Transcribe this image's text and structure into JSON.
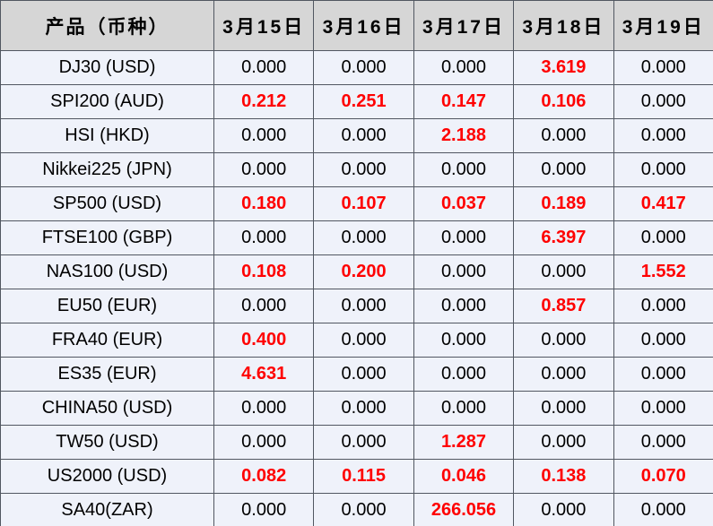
{
  "table": {
    "header": {
      "product_label": "产品（币种）",
      "dates": [
        "3月15日",
        "3月16日",
        "3月17日",
        "3月18日",
        "3月19日"
      ]
    },
    "rows": [
      {
        "product": "DJ30 (USD)",
        "values": [
          "0.000",
          "0.000",
          "0.000",
          "3.619",
          "0.000"
        ],
        "red": [
          0,
          0,
          0,
          1,
          0
        ]
      },
      {
        "product": "SPI200 (AUD)",
        "values": [
          "0.212",
          "0.251",
          "0.147",
          "0.106",
          "0.000"
        ],
        "red": [
          1,
          1,
          1,
          1,
          0
        ]
      },
      {
        "product": "HSI (HKD)",
        "values": [
          "0.000",
          "0.000",
          "2.188",
          "0.000",
          "0.000"
        ],
        "red": [
          0,
          0,
          1,
          0,
          0
        ]
      },
      {
        "product": "Nikkei225 (JPN)",
        "values": [
          "0.000",
          "0.000",
          "0.000",
          "0.000",
          "0.000"
        ],
        "red": [
          0,
          0,
          0,
          0,
          0
        ]
      },
      {
        "product": "SP500 (USD)",
        "values": [
          "0.180",
          "0.107",
          "0.037",
          "0.189",
          "0.417"
        ],
        "red": [
          1,
          1,
          1,
          1,
          1
        ]
      },
      {
        "product": "FTSE100 (GBP)",
        "values": [
          "0.000",
          "0.000",
          "0.000",
          "6.397",
          "0.000"
        ],
        "red": [
          0,
          0,
          0,
          1,
          0
        ]
      },
      {
        "product": "NAS100 (USD)",
        "values": [
          "0.108",
          "0.200",
          "0.000",
          "0.000",
          "1.552"
        ],
        "red": [
          1,
          1,
          0,
          0,
          1
        ]
      },
      {
        "product": "EU50 (EUR)",
        "values": [
          "0.000",
          "0.000",
          "0.000",
          "0.857",
          "0.000"
        ],
        "red": [
          0,
          0,
          0,
          1,
          0
        ]
      },
      {
        "product": "FRA40 (EUR)",
        "values": [
          "0.400",
          "0.000",
          "0.000",
          "0.000",
          "0.000"
        ],
        "red": [
          1,
          0,
          0,
          0,
          0
        ]
      },
      {
        "product": "ES35 (EUR)",
        "values": [
          "4.631",
          "0.000",
          "0.000",
          "0.000",
          "0.000"
        ],
        "red": [
          1,
          0,
          0,
          0,
          0
        ]
      },
      {
        "product": "CHINA50 (USD)",
        "values": [
          "0.000",
          "0.000",
          "0.000",
          "0.000",
          "0.000"
        ],
        "red": [
          0,
          0,
          0,
          0,
          0
        ]
      },
      {
        "product": "TW50 (USD)",
        "values": [
          "0.000",
          "0.000",
          "1.287",
          "0.000",
          "0.000"
        ],
        "red": [
          0,
          0,
          1,
          0,
          0
        ]
      },
      {
        "product": "US2000 (USD)",
        "values": [
          "0.082",
          "0.115",
          "0.046",
          "0.138",
          "0.070"
        ],
        "red": [
          1,
          1,
          1,
          1,
          1
        ]
      },
      {
        "product": "SA40(ZAR)",
        "values": [
          "0.000",
          "0.000",
          "266.056",
          "0.000",
          "0.000"
        ],
        "red": [
          0,
          0,
          1,
          0,
          0
        ]
      }
    ],
    "colors": {
      "header_bg": "#d6d6d6",
      "row_bg": "#eff2fa",
      "border": "#515761",
      "highlight_red": "#ff0000",
      "text": "#000000"
    }
  },
  "chart_data": {
    "type": "table",
    "title": "",
    "columns": [
      "产品（币种）",
      "3月15日",
      "3月16日",
      "3月17日",
      "3月18日",
      "3月19日"
    ],
    "rows": [
      [
        "DJ30 (USD)",
        0.0,
        0.0,
        0.0,
        3.619,
        0.0
      ],
      [
        "SPI200 (AUD)",
        0.212,
        0.251,
        0.147,
        0.106,
        0.0
      ],
      [
        "HSI (HKD)",
        0.0,
        0.0,
        2.188,
        0.0,
        0.0
      ],
      [
        "Nikkei225 (JPN)",
        0.0,
        0.0,
        0.0,
        0.0,
        0.0
      ],
      [
        "SP500 (USD)",
        0.18,
        0.107,
        0.037,
        0.189,
        0.417
      ],
      [
        "FTSE100 (GBP)",
        0.0,
        0.0,
        0.0,
        6.397,
        0.0
      ],
      [
        "NAS100 (USD)",
        0.108,
        0.2,
        0.0,
        0.0,
        1.552
      ],
      [
        "EU50 (EUR)",
        0.0,
        0.0,
        0.0,
        0.857,
        0.0
      ],
      [
        "FRA40 (EUR)",
        0.4,
        0.0,
        0.0,
        0.0,
        0.0
      ],
      [
        "ES35 (EUR)",
        4.631,
        0.0,
        0.0,
        0.0,
        0.0
      ],
      [
        "CHINA50 (USD)",
        0.0,
        0.0,
        0.0,
        0.0,
        0.0
      ],
      [
        "TW50 (USD)",
        0.0,
        0.0,
        1.287,
        0.0,
        0.0
      ],
      [
        "US2000 (USD)",
        0.082,
        0.115,
        0.046,
        0.138,
        0.07
      ],
      [
        "SA40(ZAR)",
        0.0,
        0.0,
        266.056,
        0.0,
        0.0
      ]
    ],
    "notes": "Non-zero values are rendered in bold red; zero values in black. Header row gray; data cells pale lavender."
  }
}
